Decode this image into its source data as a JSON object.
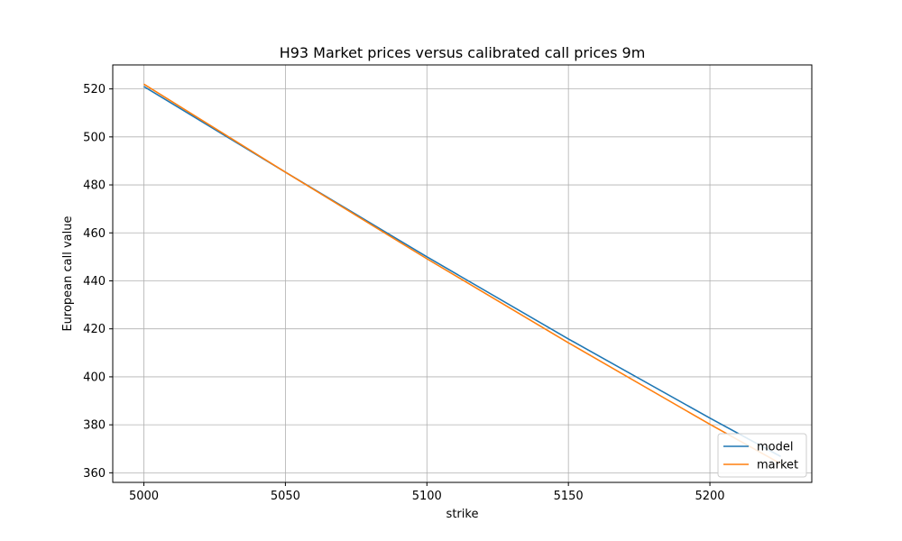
{
  "chart_data": {
    "type": "line",
    "title": "H93 Market prices versus calibrated call prices 9m",
    "xlabel": "strike",
    "ylabel": "European call value",
    "xlim": [
      4989,
      5236
    ],
    "ylim": [
      356,
      530
    ],
    "xticks": [
      5000,
      5050,
      5100,
      5150,
      5200
    ],
    "yticks": [
      360,
      380,
      400,
      420,
      440,
      460,
      480,
      500,
      520
    ],
    "grid": true,
    "legend_position": "lower-right",
    "series": [
      {
        "name": "model",
        "color": "#1f77b4",
        "x": [
          5000,
          5050,
          5100,
          5150,
          5200,
          5225
        ],
        "y": [
          521.0,
          485.3,
          450.0,
          415.8,
          382.8,
          366.8
        ]
      },
      {
        "name": "market",
        "color": "#ff7f0e",
        "x": [
          5000,
          5050,
          5100,
          5150,
          5200,
          5225
        ],
        "y": [
          522.0,
          485.3,
          449.2,
          414.2,
          380.2,
          363.8
        ]
      }
    ]
  }
}
